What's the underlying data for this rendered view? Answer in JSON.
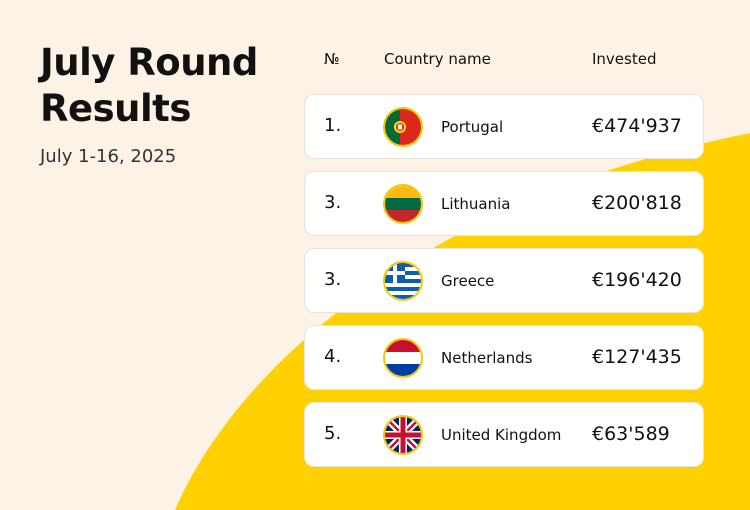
{
  "header": {
    "title_line1": "July Round",
    "title_line2": "Results",
    "date_range": "July 1-16, 2025"
  },
  "table": {
    "columns": [
      "№",
      "Country name",
      "Invested"
    ],
    "rows": [
      {
        "rank": "1.",
        "country": "Portugal",
        "invested": "€474'937",
        "flag_icon": "portugal-flag-icon"
      },
      {
        "rank": "3.",
        "country": "Lithuania",
        "invested": "€200'818",
        "flag_icon": "lithuania-flag-icon"
      },
      {
        "rank": "3.",
        "country": "Greece",
        "invested": "€196'420",
        "flag_icon": "greece-flag-icon"
      },
      {
        "rank": "4.",
        "country": "Netherlands",
        "invested": "€127'435",
        "flag_icon": "netherlands-flag-icon"
      },
      {
        "rank": "5.",
        "country": "United Kingdom",
        "invested": "€63'589",
        "flag_icon": "uk-flag-icon"
      }
    ]
  },
  "colors": {
    "background": "#fdf2e6",
    "accent_yellow": "#ffd100",
    "card": "#ffffff"
  }
}
